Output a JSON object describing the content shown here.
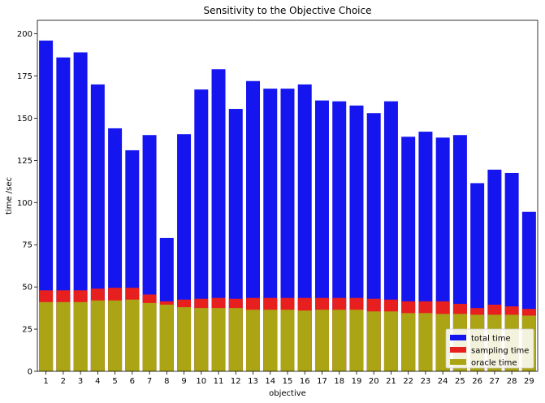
{
  "chart_data": {
    "type": "bar",
    "title": "Sensitivity to the Objective Choice",
    "xlabel": "objective",
    "ylabel": "time /sec",
    "ylim": [
      0,
      208
    ],
    "yticks": [
      0,
      25,
      50,
      75,
      100,
      125,
      150,
      175,
      200
    ],
    "categories": [
      "1",
      "2",
      "3",
      "4",
      "5",
      "6",
      "7",
      "8",
      "9",
      "10",
      "11",
      "12",
      "13",
      "14",
      "15",
      "16",
      "17",
      "18",
      "19",
      "20",
      "21",
      "22",
      "23",
      "24",
      "25",
      "26",
      "27",
      "28",
      "29"
    ],
    "layering": "overlay",
    "legend_position": "lower-right",
    "grid": false,
    "series": [
      {
        "name": "total time",
        "color": "#1515f0",
        "values": [
          196,
          186,
          189,
          170,
          144,
          131,
          140,
          79,
          140.5,
          167,
          179,
          155.5,
          172,
          167.5,
          167.5,
          170,
          160.5,
          160,
          157.5,
          153,
          160,
          139,
          142,
          138.5,
          140,
          111.5,
          119.5,
          117.5,
          94.5
        ]
      },
      {
        "name": "sampling time",
        "color": "#e81f1f",
        "values": [
          48,
          48,
          48,
          49,
          49.5,
          49.5,
          45.5,
          41.5,
          42.5,
          43,
          43.5,
          43,
          43.5,
          43.5,
          43.5,
          43.5,
          43.5,
          43.5,
          43.5,
          43,
          42.5,
          41.5,
          41.5,
          41.5,
          40,
          37.5,
          39.5,
          38.5,
          37
        ]
      },
      {
        "name": "oracle time",
        "color": "#aba515",
        "values": [
          41,
          41,
          41,
          42,
          42,
          42.5,
          40.5,
          39.5,
          38,
          37.5,
          37.5,
          37.5,
          36.5,
          36.5,
          36.5,
          36,
          36.5,
          36.5,
          36.5,
          35.5,
          35.5,
          34.5,
          34.5,
          34,
          34,
          33.5,
          33.5,
          33.5,
          33
        ]
      }
    ]
  }
}
